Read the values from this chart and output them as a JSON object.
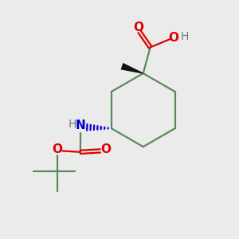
{
  "bg_color": "#ebebeb",
  "bond_color": "#5a8a5a",
  "red_color": "#dd0000",
  "dark_color": "#777777",
  "blue_color": "#0000cc",
  "black_color": "#111111",
  "figsize": [
    3.0,
    3.0
  ],
  "dpi": 100,
  "xlim": [
    0,
    10
  ],
  "ylim": [
    0,
    10
  ],
  "lw": 1.6
}
